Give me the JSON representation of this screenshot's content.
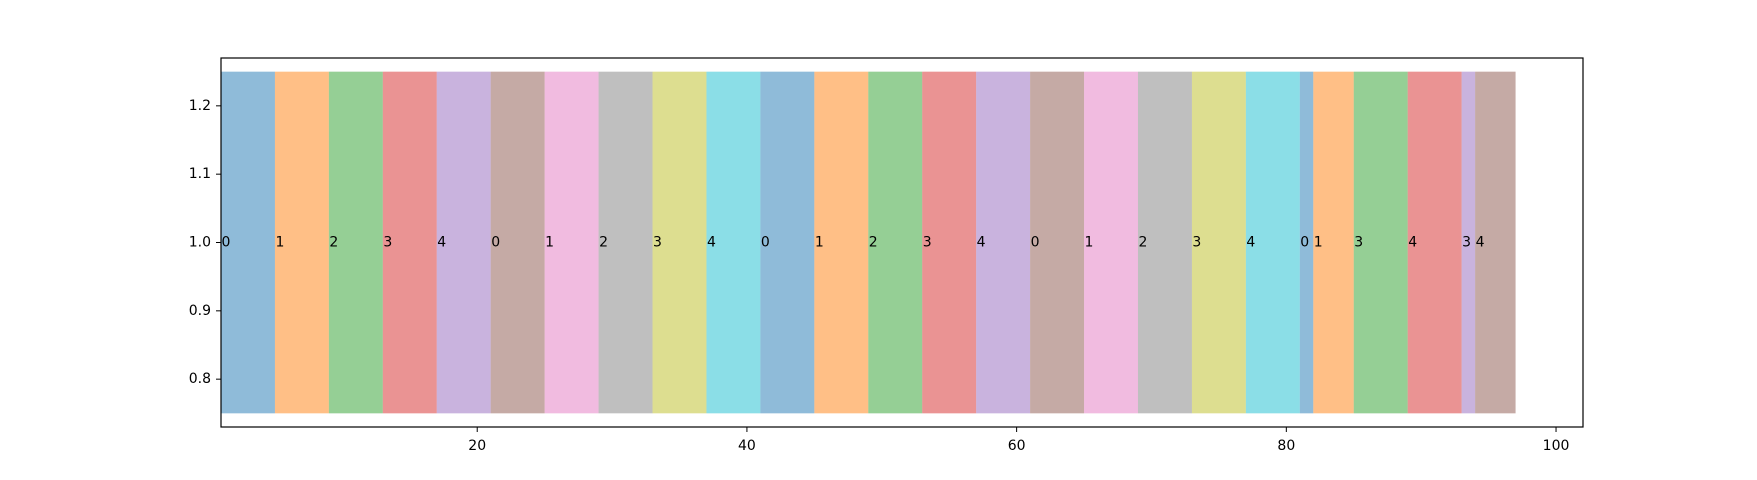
{
  "chart_data": {
    "type": "bar",
    "orientation": "horizontal-broken-segments",
    "title": "",
    "xlabel": "",
    "ylabel": "",
    "xlim": [
      1,
      102
    ],
    "ylim": [
      0.73,
      1.27
    ],
    "bar_y": 1.0,
    "bar_height": 0.5,
    "bar_alpha": 0.5,
    "x_ticks": [
      20,
      40,
      60,
      80,
      100
    ],
    "y_ticks": [
      0.8,
      0.9,
      1.0,
      1.1,
      1.2
    ],
    "y_tick_labels": [
      "0.8",
      "0.9",
      "1.0",
      "1.1",
      "1.2"
    ],
    "grid": false,
    "palette": [
      "#1f77b4",
      "#ff7f0e",
      "#2ca02c",
      "#d62728",
      "#9467bd",
      "#8c564b",
      "#e377c2",
      "#7f7f7f",
      "#bcbd22",
      "#17becf"
    ],
    "segments": [
      {
        "start": 1,
        "width": 4,
        "label": "0",
        "color_index": 0
      },
      {
        "start": 5,
        "width": 4,
        "label": "1",
        "color_index": 1
      },
      {
        "start": 9,
        "width": 4,
        "label": "2",
        "color_index": 2
      },
      {
        "start": 13,
        "width": 4,
        "label": "3",
        "color_index": 3
      },
      {
        "start": 17,
        "width": 4,
        "label": "4",
        "color_index": 4
      },
      {
        "start": 21,
        "width": 4,
        "label": "0",
        "color_index": 5
      },
      {
        "start": 25,
        "width": 4,
        "label": "1",
        "color_index": 6
      },
      {
        "start": 29,
        "width": 4,
        "label": "2",
        "color_index": 7
      },
      {
        "start": 33,
        "width": 4,
        "label": "3",
        "color_index": 8
      },
      {
        "start": 37,
        "width": 4,
        "label": "4",
        "color_index": 9
      },
      {
        "start": 41,
        "width": 4,
        "label": "0",
        "color_index": 0
      },
      {
        "start": 45,
        "width": 4,
        "label": "1",
        "color_index": 1
      },
      {
        "start": 49,
        "width": 4,
        "label": "2",
        "color_index": 2
      },
      {
        "start": 53,
        "width": 4,
        "label": "3",
        "color_index": 3
      },
      {
        "start": 57,
        "width": 4,
        "label": "4",
        "color_index": 4
      },
      {
        "start": 61,
        "width": 4,
        "label": "0",
        "color_index": 5
      },
      {
        "start": 65,
        "width": 4,
        "label": "1",
        "color_index": 6
      },
      {
        "start": 69,
        "width": 4,
        "label": "2",
        "color_index": 7
      },
      {
        "start": 73,
        "width": 4,
        "label": "3",
        "color_index": 8
      },
      {
        "start": 77,
        "width": 4,
        "label": "4",
        "color_index": 9
      },
      {
        "start": 81,
        "width": 1,
        "label": "0",
        "color_index": 0
      },
      {
        "start": 82,
        "width": 3,
        "label": "1",
        "color_index": 1
      },
      {
        "start": 85,
        "width": 4,
        "label": "3",
        "color_index": 2
      },
      {
        "start": 89,
        "width": 4,
        "label": "4",
        "color_index": 3
      },
      {
        "start": 93,
        "width": 1,
        "label": "3",
        "color_index": 4
      },
      {
        "start": 94,
        "width": 3,
        "label": "4",
        "color_index": 5
      }
    ]
  }
}
